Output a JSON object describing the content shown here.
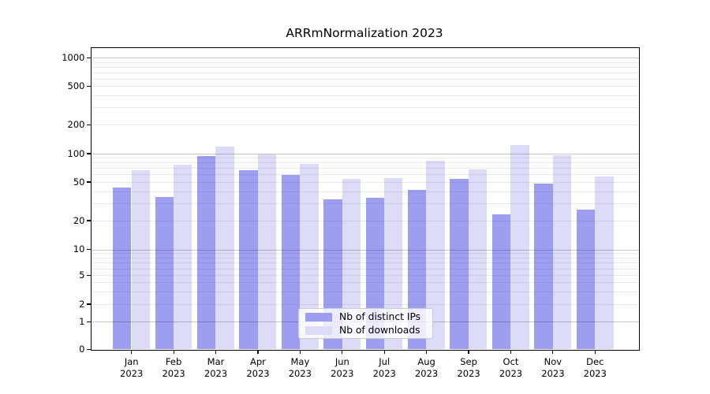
{
  "figure": {
    "background": "#ffffff"
  },
  "chart_data": {
    "type": "bar",
    "title": "ARRmNormalization 2023",
    "year_label": "2023",
    "categories": [
      "Jan",
      "Feb",
      "Mar",
      "Apr",
      "May",
      "Jun",
      "Jul",
      "Aug",
      "Sep",
      "Oct",
      "Nov",
      "Dec"
    ],
    "series": [
      {
        "name": "Nb of distinct IPs",
        "color": "#9e9ef0",
        "values": [
          44,
          35,
          94,
          67,
          59,
          33,
          34,
          41,
          54,
          23,
          48,
          26
        ]
      },
      {
        "name": "Nb of downloads",
        "color": "#dcdcf9",
        "values": [
          67,
          76,
          119,
          97,
          78,
          54,
          55,
          84,
          68,
          123,
          95,
          57
        ]
      }
    ],
    "yticks": [
      0,
      1,
      2,
      5,
      10,
      20,
      50,
      100,
      200,
      500,
      1000
    ],
    "ylim": [
      0,
      1000
    ],
    "yscale": "symlog",
    "grid": true,
    "legend_position": "lower center"
  },
  "colors": {
    "major_grid": "rgba(0,0,0,0.22)",
    "minor_grid": "rgba(0,0,0,0.08)",
    "spine": "#000000",
    "text": "#000000",
    "legend_border": "#cccccc",
    "legend_background": "rgba(255,255,255,0.8)"
  }
}
